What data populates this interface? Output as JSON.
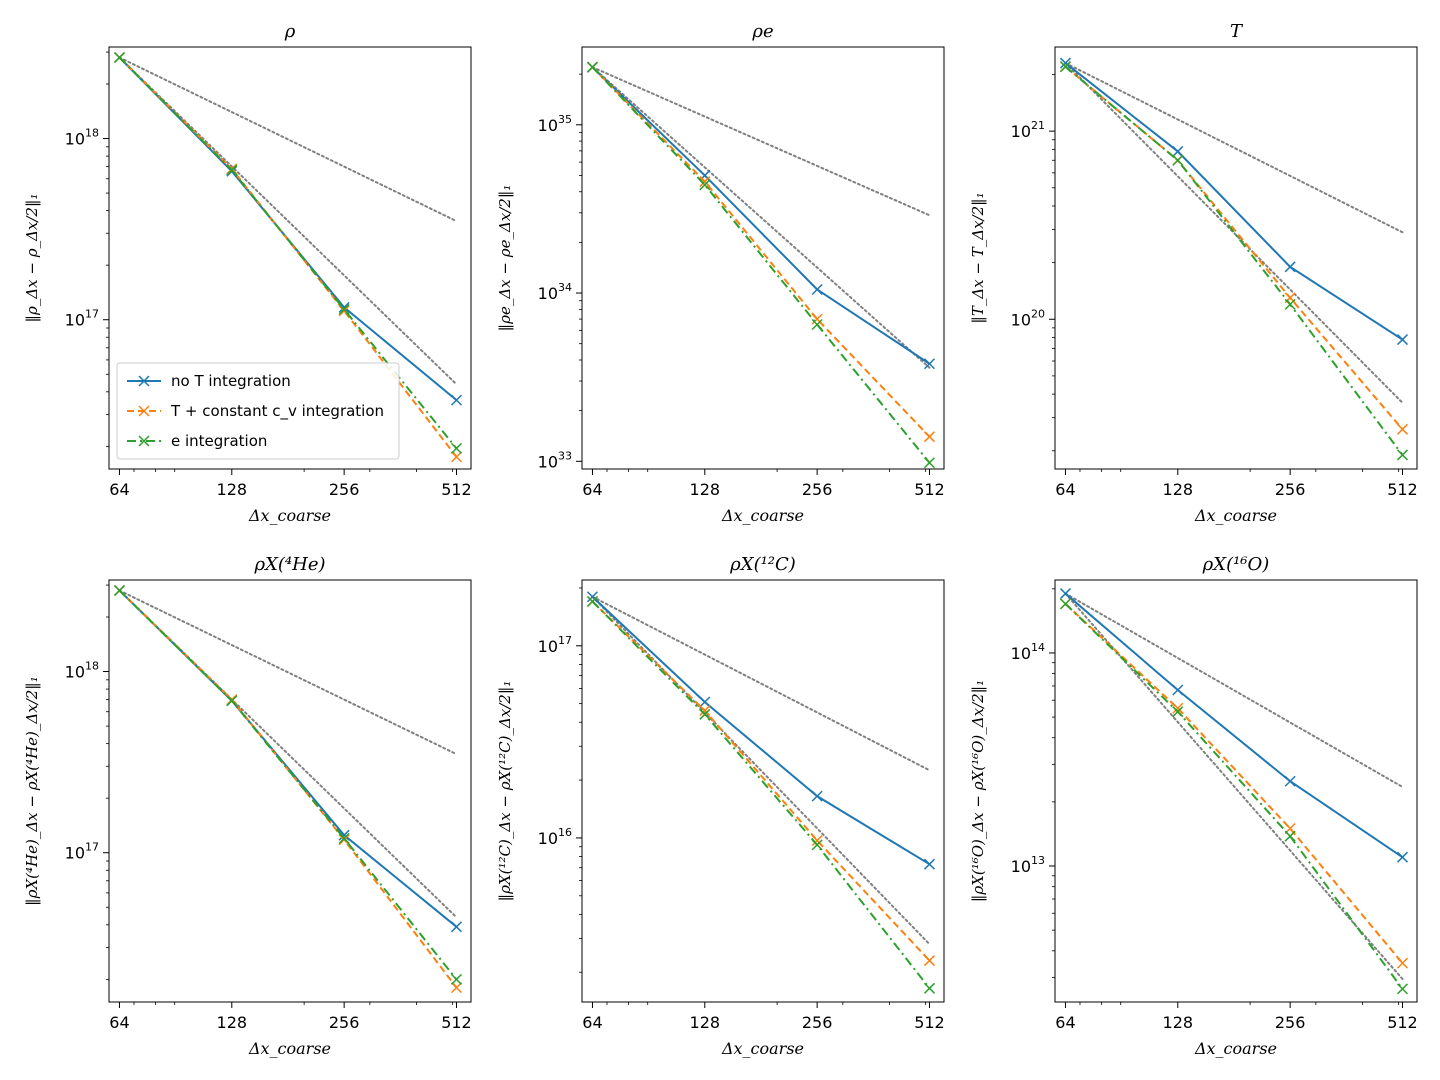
{
  "colors": {
    "no_T": "#1f77b4",
    "T_cv": "#ff7f0e",
    "e_int": "#2ca02c",
    "reference": "#808080"
  },
  "legend": {
    "entries": [
      {
        "key": "no_T",
        "label": "no T integration",
        "style": "solid"
      },
      {
        "key": "T_cv",
        "label": "T + constant c_v integration",
        "style": "dashed"
      },
      {
        "key": "e_int",
        "label": "e integration",
        "style": "dashdot"
      }
    ]
  },
  "chart_data": [
    {
      "type": "line",
      "title": "ρ",
      "xlabel": "Δx_coarse",
      "ylabel": "‖ρ_Δx − ρ_Δx/2‖₁",
      "x": [
        64,
        128,
        256,
        512
      ],
      "xlim": [
        60,
        560
      ],
      "yscale": "log",
      "ylim": [
        1.5e+16,
        3.2e+18
      ],
      "yticks": [
        {
          "value": 1e+17,
          "label": "10^17"
        },
        {
          "value": 1e+18,
          "label": "10^18"
        }
      ],
      "series": [
        {
          "name": "no T integration",
          "values": [
            2.8e+18,
            6.6e+17,
            1.17e+17,
            3.6e+16
          ]
        },
        {
          "name": "T + constant c_v integration",
          "values": [
            2.8e+18,
            6.8e+17,
            1.12e+17,
            1.75e+16
          ]
        },
        {
          "name": "e integration",
          "values": [
            2.8e+18,
            6.7e+17,
            1.14e+17,
            1.95e+16
          ]
        }
      ],
      "reference": [
        [
          2.8e+18,
          3.5e+17
        ],
        [
          2.8e+18,
          4.4e+16
        ]
      ],
      "legend": "lower-left"
    },
    {
      "type": "line",
      "title": "ρe",
      "xlabel": "Δx_coarse",
      "ylabel": "‖ρe_Δx − ρe_Δx/2‖₁",
      "x": [
        64,
        128,
        256,
        512
      ],
      "xlim": [
        60,
        560
      ],
      "yscale": "log",
      "ylim": [
        9e+32,
        2.9e+35
      ],
      "yticks": [
        {
          "value": 1e+33,
          "label": "10^33"
        },
        {
          "value": 1e+34,
          "label": "10^34"
        },
        {
          "value": 1e+35,
          "label": "10^35"
        }
      ],
      "series": [
        {
          "name": "no T integration",
          "values": [
            2.2e+35,
            5e+34,
            1.05e+34,
            3.8e+33
          ]
        },
        {
          "name": "T + constant c_v integration",
          "values": [
            2.2e+35,
            4.6e+34,
            7e+33,
            1.4e+33
          ]
        },
        {
          "name": "e integration",
          "values": [
            2.2e+35,
            4.4e+34,
            6.5e+33,
            9.8e+32
          ]
        }
      ],
      "reference": [
        [
          2.2e+35,
          2.9e+34
        ],
        [
          2.2e+35,
          3.6e+33
        ]
      ]
    },
    {
      "type": "line",
      "title": "T",
      "xlabel": "Δx_coarse",
      "ylabel": "‖T_Δx − T_Δx/2‖₁",
      "x": [
        64,
        128,
        256,
        512
      ],
      "xlim": [
        60,
        560
      ],
      "yscale": "log",
      "ylim": [
        1.6e+19,
        2.8e+21
      ],
      "yticks": [
        {
          "value": 1e+20,
          "label": "10^20"
        },
        {
          "value": 1e+21,
          "label": "10^21"
        }
      ],
      "series": [
        {
          "name": "no T integration",
          "values": [
            2.3e+21,
            7.8e+20,
            1.9e+20,
            7.8e+19
          ]
        },
        {
          "name": "T + constant c_v integration",
          "values": [
            2.2e+21,
            7e+20,
            1.3e+20,
            2.6e+19
          ]
        },
        {
          "name": "e integration",
          "values": [
            2.2e+21,
            7e+20,
            1.2e+20,
            1.9e+19
          ]
        }
      ],
      "reference": [
        [
          2.3e+21,
          2.9e+20
        ],
        [
          2.3e+21,
          3.6e+19
        ]
      ]
    },
    {
      "type": "line",
      "title": "ρX(⁴He)",
      "xlabel": "Δx_coarse",
      "ylabel": "‖ρX(⁴He)_Δx − ρX(⁴He)_Δx/2‖₁",
      "x": [
        64,
        128,
        256,
        512
      ],
      "xlim": [
        60,
        560
      ],
      "yscale": "log",
      "ylim": [
        1.5e+16,
        3.2e+18
      ],
      "yticks": [
        {
          "value": 1e+17,
          "label": "10^17"
        },
        {
          "value": 1e+18,
          "label": "10^18"
        }
      ],
      "series": [
        {
          "name": "no T integration",
          "values": [
            2.8e+18,
            6.9e+17,
            1.25e+17,
            3.9e+16
          ]
        },
        {
          "name": "T + constant c_v integration",
          "values": [
            2.8e+18,
            7e+17,
            1.18e+17,
            1.8e+16
          ]
        },
        {
          "name": "e integration",
          "values": [
            2.8e+18,
            6.9e+17,
            1.2e+17,
            2e+16
          ]
        }
      ],
      "reference": [
        [
          2.8e+18,
          3.5e+17
        ],
        [
          2.8e+18,
          4.4e+16
        ]
      ]
    },
    {
      "type": "line",
      "title": "ρX(¹²C)",
      "xlabel": "Δx_coarse",
      "ylabel": "‖ρX(¹²C)_Δx − ρX(¹²C)_Δx/2‖₁",
      "x": [
        64,
        128,
        256,
        512
      ],
      "xlim": [
        60,
        560
      ],
      "yscale": "log",
      "ylim": [
        1400000000000000.0,
        2.2e+17
      ],
      "yticks": [
        {
          "value": 1e+16,
          "label": "10^16"
        },
        {
          "value": 1e+17,
          "label": "10^17"
        }
      ],
      "series": [
        {
          "name": "no T integration",
          "values": [
            1.8e+17,
            5.1e+16,
            1.65e+16,
            7300000000000000.0
          ]
        },
        {
          "name": "T + constant c_v integration",
          "values": [
            1.7e+17,
            4.6e+16,
            9700000000000000.0,
            2300000000000000.0
          ]
        },
        {
          "name": "e integration",
          "values": [
            1.7e+17,
            4.4e+16,
            9200000000000000.0,
            1650000000000000.0
          ]
        }
      ],
      "reference": [
        [
          1.8e+17,
          2.25e+16
        ],
        [
          1.8e+17,
          2800000000000000.0
        ]
      ]
    },
    {
      "type": "line",
      "title": "ρX(¹⁶O)",
      "xlabel": "Δx_coarse",
      "ylabel": "‖ρX(¹⁶O)_Δx − ρX(¹⁶O)_Δx/2‖₁",
      "x": [
        64,
        128,
        256,
        512
      ],
      "xlim": [
        60,
        560
      ],
      "yscale": "log",
      "ylim": [
        2300000000000.0,
        220000000000000.0
      ],
      "yticks": [
        {
          "value": 10000000000000.0,
          "label": "10^13"
        },
        {
          "value": 100000000000000.0,
          "label": "10^14"
        }
      ],
      "series": [
        {
          "name": "no T integration",
          "values": [
            190000000000000.0,
            67000000000000.0,
            25000000000000.0,
            11000000000000.0
          ]
        },
        {
          "name": "T + constant c_v integration",
          "values": [
            170000000000000.0,
            55000000000000.0,
            15000000000000.0,
            3500000000000.0
          ]
        },
        {
          "name": "e integration",
          "values": [
            170000000000000.0,
            53000000000000.0,
            13800000000000.0,
            2650000000000.0
          ]
        }
      ],
      "reference": [
        [
          190000000000000.0,
          23500000000000.0
        ],
        [
          190000000000000.0,
          2950000000000.0
        ]
      ]
    }
  ]
}
